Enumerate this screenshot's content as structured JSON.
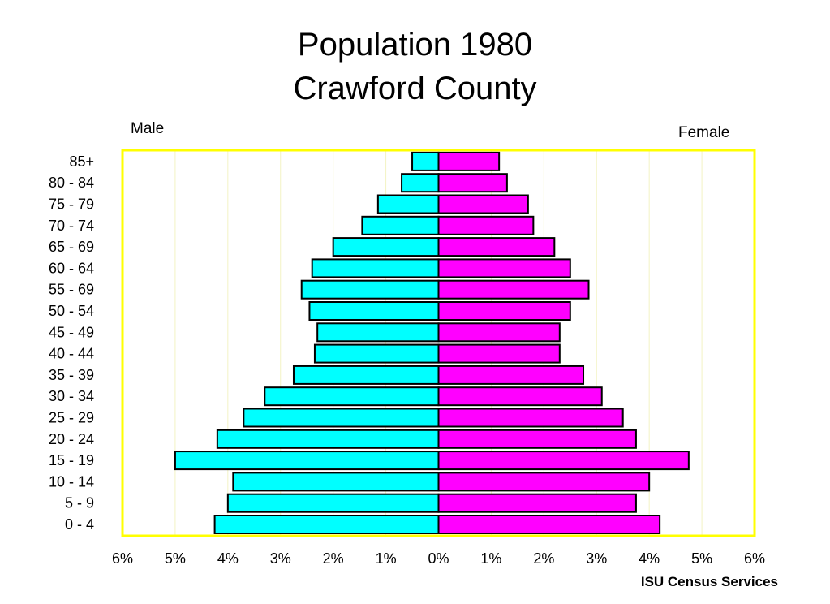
{
  "title_line1": "Population 1980",
  "title_line2": "Crawford County",
  "male_label": "Male",
  "female_label": "Female",
  "credit": "ISU Census Services",
  "colors": {
    "male": "#00ffff",
    "female": "#ff00ff",
    "frame": "#ffff00",
    "gridline": "#f3f3c4"
  },
  "chart_data": {
    "type": "bar",
    "orientation": "horizontal-population-pyramid",
    "categories": [
      "0 - 4",
      "5 - 9",
      "10 - 14",
      "15 - 19",
      "20 - 24",
      "25 - 29",
      "30 - 34",
      "35 - 39",
      "40 - 44",
      "45 - 49",
      "50 - 54",
      "55 - 69",
      "60 - 64",
      "65 - 69",
      "70 - 74",
      "75 - 79",
      "80 - 84",
      "85+"
    ],
    "series": [
      {
        "name": "Male",
        "values": [
          4.25,
          4.0,
          3.9,
          5.0,
          4.2,
          3.7,
          3.3,
          2.75,
          2.35,
          2.3,
          2.45,
          2.6,
          2.4,
          2.0,
          1.45,
          1.15,
          0.7,
          0.5
        ]
      },
      {
        "name": "Female",
        "values": [
          4.2,
          3.75,
          4.0,
          4.75,
          3.75,
          3.5,
          3.1,
          2.75,
          2.3,
          2.3,
          2.5,
          2.85,
          2.5,
          2.2,
          1.8,
          1.7,
          1.3,
          1.15
        ]
      }
    ],
    "x_ticks": [
      "6%",
      "5%",
      "4%",
      "3%",
      "2%",
      "1%",
      "0%",
      "1%",
      "2%",
      "3%",
      "4%",
      "5%",
      "6%"
    ],
    "xlim": [
      -6,
      6
    ],
    "grid": "vertical"
  }
}
